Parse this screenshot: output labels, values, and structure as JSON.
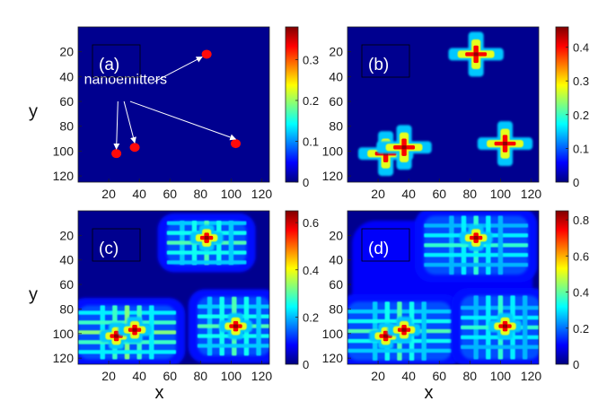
{
  "chart_data": {
    "type": "heatmap",
    "colormap": "jet",
    "x_ticks": [
      20,
      40,
      60,
      80,
      100,
      120
    ],
    "y_ticks": [
      20,
      40,
      60,
      80,
      100,
      120
    ],
    "xlim": [
      0,
      125
    ],
    "ylim": [
      125,
      0
    ],
    "xlabel": "x",
    "ylabel": "y",
    "emitters": [
      {
        "x": 84,
        "y": 22
      },
      {
        "x": 25,
        "y": 102
      },
      {
        "x": 37,
        "y": 97
      },
      {
        "x": 103,
        "y": 94
      }
    ],
    "panels": [
      {
        "label": "(a)",
        "clim": [
          0,
          0.38
        ],
        "colorbar_ticks": [
          "0",
          "0.1",
          "0.2",
          "0.3"
        ],
        "colorbar_values": [
          0,
          0.1,
          0.2,
          0.3
        ],
        "annotation": "nanoemitters",
        "show_ylabel": true,
        "show_xlabel": false
      },
      {
        "label": "(b)",
        "clim": [
          0,
          0.46
        ],
        "colorbar_ticks": [
          "0",
          "0.1",
          "0.2",
          "0.3",
          "0.4"
        ],
        "colorbar_values": [
          0,
          0.1,
          0.2,
          0.3,
          0.4
        ],
        "show_ylabel": false,
        "show_xlabel": false
      },
      {
        "label": "(c)",
        "clim": [
          0,
          0.65
        ],
        "colorbar_ticks": [
          "0",
          "0.2",
          "0.4",
          "0.6"
        ],
        "colorbar_values": [
          0,
          0.2,
          0.4,
          0.6
        ],
        "show_ylabel": true,
        "show_xlabel": true
      },
      {
        "label": "(d)",
        "clim": [
          0,
          0.85
        ],
        "colorbar_ticks": [
          "0",
          "0.2",
          "0.4",
          "0.6",
          "0.8"
        ],
        "colorbar_values": [
          0,
          0.2,
          0.4,
          0.6,
          0.8
        ],
        "show_ylabel": false,
        "show_xlabel": true
      }
    ]
  }
}
